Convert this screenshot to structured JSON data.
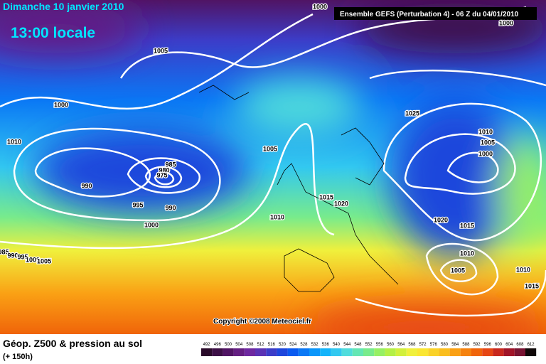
{
  "header": {
    "date": "Dimanche 10 janvier 2010",
    "time": "13:00 locale",
    "model": "Ensemble GEFS (Perturbation 4)  - 06 Z du 04/01/2010"
  },
  "isobar_labels": [
    "1000",
    "1000",
    "1005",
    "1000",
    "1010",
    "1025",
    "1010",
    "1005",
    "1000",
    "1005",
    "985",
    "980",
    "975",
    "990",
    "995",
    "990",
    "1000",
    "1015",
    "1020",
    "1010",
    "1020",
    "1015",
    "1010",
    "1005",
    "1010",
    "1015",
    "985",
    "990",
    "995",
    "1000",
    "1005"
  ],
  "copyright": "Copyright ©2008 Meteociel.fr",
  "legend": {
    "title": "Géop. Z500 & pression au sol",
    "subtitle": "(+ 150h)",
    "scale_labels": [
      "492",
      "496",
      "500",
      "504",
      "508",
      "512",
      "516",
      "520",
      "524",
      "528",
      "532",
      "536",
      "540",
      "544",
      "548",
      "552",
      "556",
      "560",
      "564",
      "568",
      "572",
      "576",
      "580",
      "584",
      "588",
      "592",
      "596",
      "600",
      "604",
      "608",
      "612"
    ],
    "colors": [
      "#2a0a2a",
      "#3c0f46",
      "#501464",
      "#641e82",
      "#6e28a0",
      "#5a32b4",
      "#3c3cc8",
      "#1e46dc",
      "#0a5af0",
      "#0a78f5",
      "#0a96fa",
      "#14b4fa",
      "#32c8f0",
      "#50dcdc",
      "#64e6b4",
      "#78eb8c",
      "#96f064",
      "#b4f046",
      "#d2f03c",
      "#f0f03c",
      "#fae632",
      "#fad228",
      "#fabe1e",
      "#faa014",
      "#f5820f",
      "#f0640a",
      "#e64614",
      "#c8281e",
      "#a01428",
      "#781432",
      "#100808"
    ]
  }
}
